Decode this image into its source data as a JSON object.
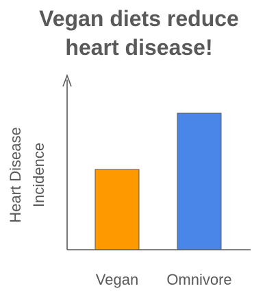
{
  "chart_data": {
    "type": "bar",
    "title_lines": [
      "Vegan diets reduce",
      "heart disease!"
    ],
    "ylabel_lines": [
      "Heart Disease",
      "Incidence"
    ],
    "xlabel": "",
    "categories": [
      "Vegan",
      "Omnivore"
    ],
    "values": [
      117,
      199
    ],
    "ylim": [
      0,
      250
    ],
    "colors": [
      "#FF9900",
      "#4A86E8"
    ],
    "y_ticks_shown": false,
    "grid": false,
    "legend": "none"
  }
}
